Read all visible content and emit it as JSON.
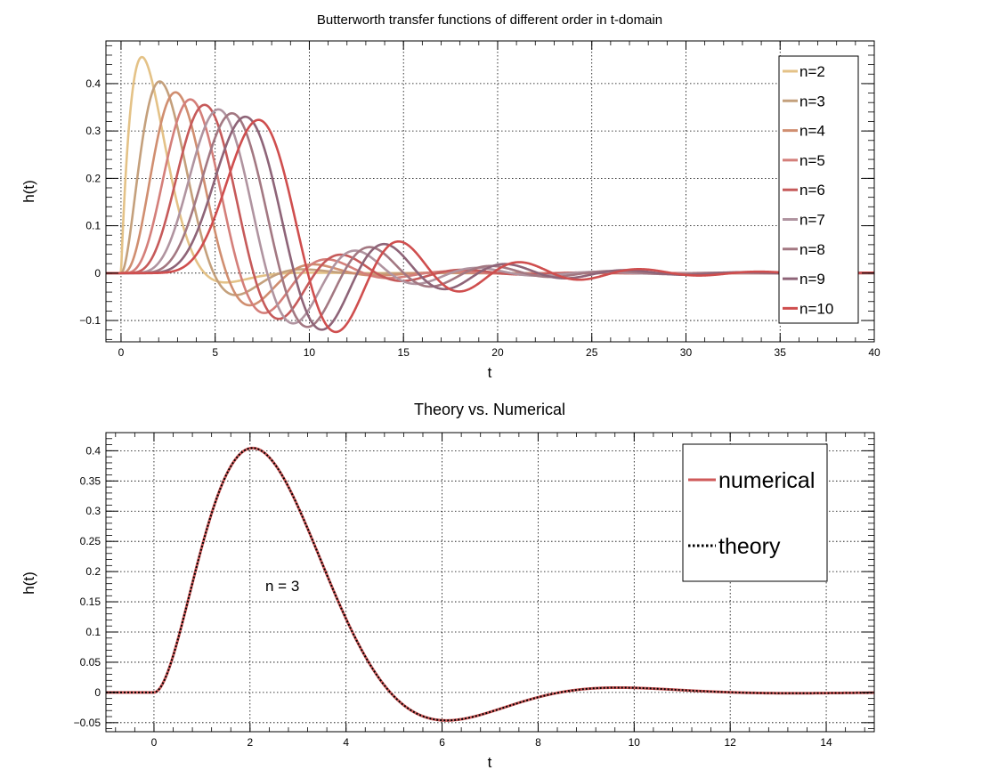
{
  "chart_data": [
    {
      "type": "line",
      "title": "Butterworth transfer functions of different order in t-domain",
      "xlabel": "t",
      "ylabel": "h(t)",
      "xlim": [
        -0.8,
        40
      ],
      "ylim": [
        -0.145,
        0.49
      ],
      "grid": true,
      "legend_position": "top-right",
      "xticks": [
        0,
        5,
        10,
        15,
        20,
        25,
        30,
        35,
        40
      ],
      "xtick_labels": [
        "0",
        "5",
        "10",
        "15",
        "20",
        "25",
        "30",
        "35",
        "40"
      ],
      "yticks": [
        -0.1,
        0,
        0.1,
        0.2,
        0.3,
        0.4
      ],
      "ytick_labels": [
        "−0.1",
        "0",
        "0.1",
        "0.2",
        "0.3",
        "0.4"
      ],
      "series": [
        {
          "name": "n=2",
          "color": "#e4c287",
          "order": 2
        },
        {
          "name": "n=3",
          "color": "#c4a07c",
          "order": 3
        },
        {
          "name": "n=4",
          "color": "#d08e70",
          "order": 4
        },
        {
          "name": "n=5",
          "color": "#d47f7a",
          "order": 5
        },
        {
          "name": "n=6",
          "color": "#c65a5a",
          "order": 6
        },
        {
          "name": "n=7",
          "color": "#b094a0",
          "order": 7
        },
        {
          "name": "n=8",
          "color": "#a37882",
          "order": 8
        },
        {
          "name": "n=9",
          "color": "#8e6478",
          "order": 9
        },
        {
          "name": "n=10",
          "color": "#cf4e4e",
          "order": 10
        }
      ]
    },
    {
      "type": "line",
      "title": "Theory vs. Numerical",
      "xlabel": "t",
      "ylabel": "h(t)",
      "xlim": [
        -1,
        15
      ],
      "ylim": [
        -0.065,
        0.43
      ],
      "grid": true,
      "legend_position": "top-right",
      "annotation": "n = 3",
      "xticks": [
        0,
        2,
        4,
        6,
        8,
        10,
        12,
        14
      ],
      "xtick_labels": [
        "0",
        "2",
        "4",
        "6",
        "8",
        "10",
        "12",
        "14"
      ],
      "yticks": [
        -0.05,
        0,
        0.05,
        0.1,
        0.15,
        0.2,
        0.25,
        0.3,
        0.35,
        0.4
      ],
      "ytick_labels": [
        "−0.05",
        "0",
        "0.05",
        "0.1",
        "0.15",
        "0.2",
        "0.25",
        "0.3",
        "0.35",
        "0.4"
      ],
      "series": [
        {
          "name": "numerical",
          "color": "#cf5a5a",
          "style": "solid",
          "order": 3
        },
        {
          "name": "theory",
          "color": "#000000",
          "style": "dotted",
          "order": 3
        }
      ]
    }
  ]
}
